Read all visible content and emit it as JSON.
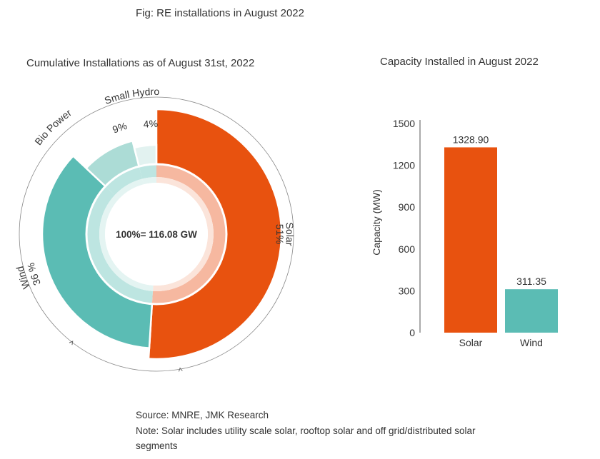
{
  "figure_title": "Fig: RE installations in August 2022",
  "source": "Source: MNRE, JMK Research",
  "note_line1": "Note: Solar includes utility scale solar, rooftop solar and off grid/distributed solar",
  "note_line2": "segments",
  "colors": {
    "solar": "#e8520f",
    "wind": "#5bbcb4",
    "bio": "#acdcd6",
    "hydro": "#e2f2f0",
    "solar_inner": "#f6b8a0",
    "solar_inner2": "#fbe4da",
    "wind_inner": "#bde5e1",
    "wind_inner2": "#e4f4f2",
    "axis": "#555555",
    "text": "#333333"
  },
  "chart_data": [
    {
      "type": "pie",
      "title": "Cumulative Installations as of August 31st, 2022",
      "center_label": "100%= 116.08 GW",
      "slices": [
        {
          "name": "Solar",
          "label": "Solar",
          "percent_label": "51%",
          "value": 51
        },
        {
          "name": "Wind",
          "label": "Wind",
          "percent_label": "36 %",
          "value": 36
        },
        {
          "name": "Bio Power",
          "label": "Bio Power",
          "percent_label": "9%",
          "value": 9
        },
        {
          "name": "Small Hydro",
          "label": "Small Hydro",
          "percent_label": "4%",
          "value": 4
        }
      ]
    },
    {
      "type": "bar",
      "title": "Capacity Installed in August 2022",
      "ylabel": "Capacity (MW)",
      "xlabel": "",
      "ylim": [
        0,
        1500
      ],
      "yticks": [
        0,
        300,
        600,
        900,
        1200,
        1500
      ],
      "categories": [
        "Solar",
        "Wind"
      ],
      "values": [
        1328.9,
        311.35
      ],
      "data_labels": [
        "1328.90",
        "311.35"
      ],
      "grid": false
    }
  ]
}
